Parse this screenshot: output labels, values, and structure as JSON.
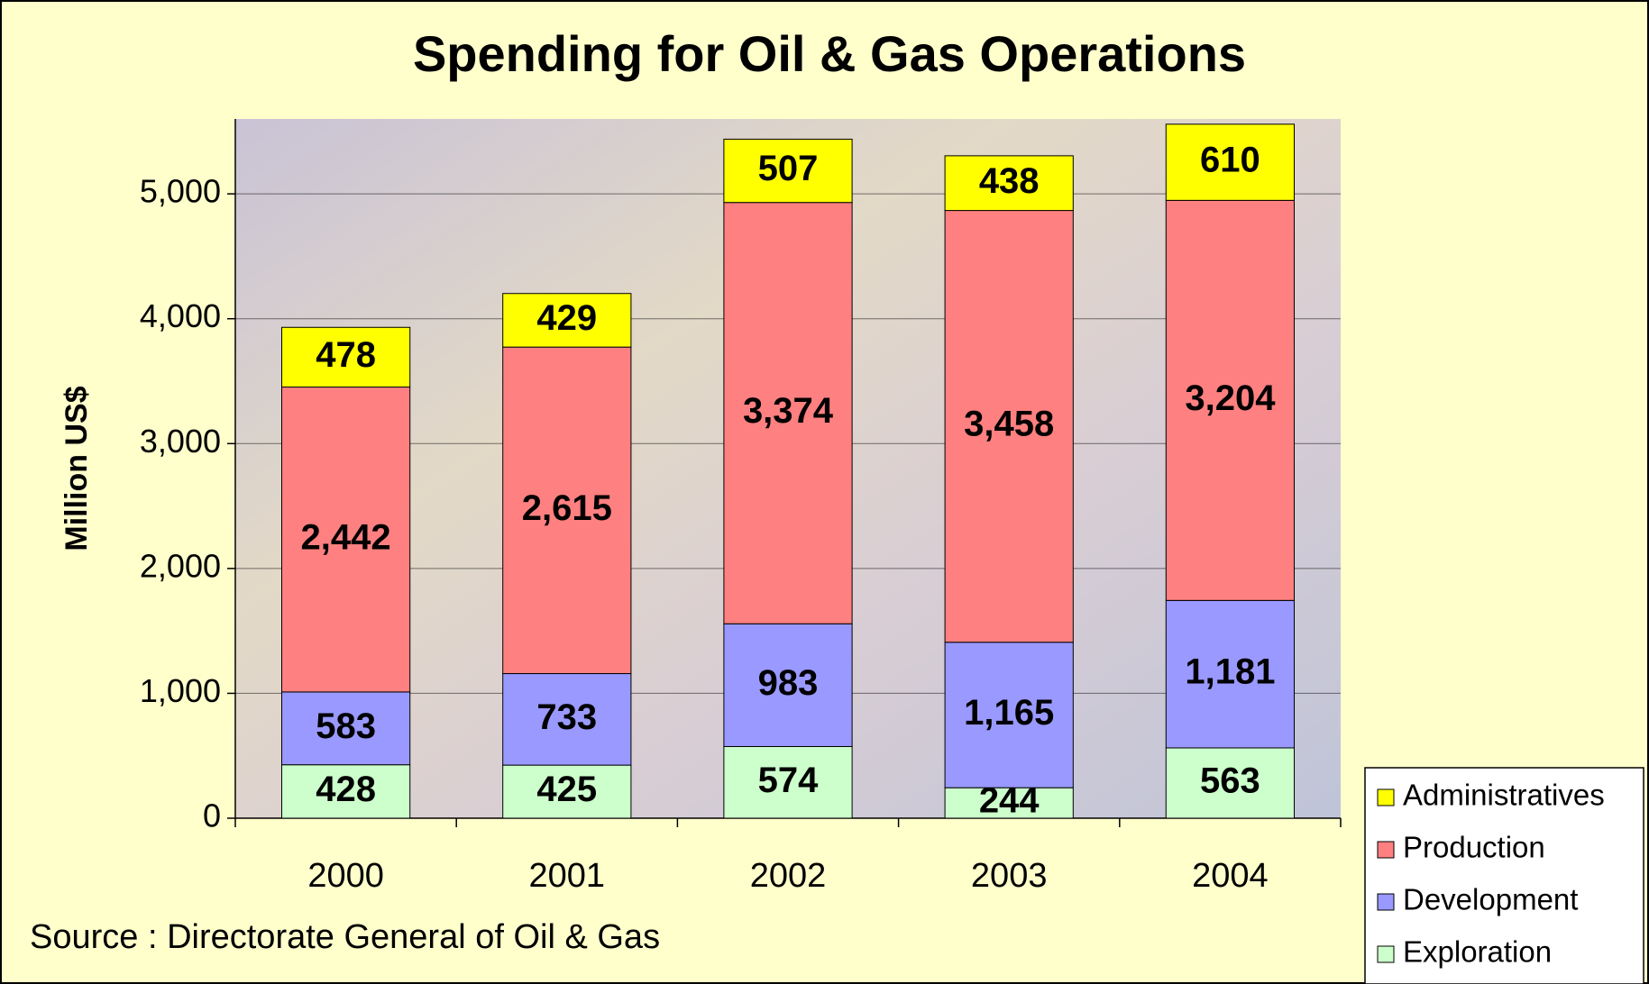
{
  "chart_data": {
    "type": "stacked-bar",
    "title": "Spending for Oil & Gas Operations",
    "y_label": "Million US$",
    "source": "Source : Directorate General of Oil & Gas",
    "categories": [
      "2000",
      "2001",
      "2002",
      "2003",
      "2004"
    ],
    "series": [
      {
        "name": "Exploration",
        "color": "#ccffcc",
        "values": [
          428,
          425,
          574,
          244,
          563
        ],
        "value_labels": [
          "428",
          "425",
          "574",
          "244",
          "563"
        ]
      },
      {
        "name": "Development",
        "color": "#9999ff",
        "values": [
          583,
          733,
          983,
          1165,
          1181
        ],
        "value_labels": [
          "583",
          "733",
          "983",
          "1,165",
          "1,181"
        ]
      },
      {
        "name": "Production",
        "color": "#ff8080",
        "values": [
          2442,
          2615,
          3374,
          3458,
          3204
        ],
        "value_labels": [
          "2,442",
          "2,615",
          "3,374",
          "3,458",
          "3,204"
        ]
      },
      {
        "name": "Administratives",
        "color": "#ffff00",
        "values": [
          478,
          429,
          507,
          438,
          610
        ],
        "value_labels": [
          "478",
          "429",
          "507",
          "438",
          "610"
        ]
      }
    ],
    "ylim": [
      0,
      5600
    ],
    "yticks": [
      0,
      {
        "value": 1000,
        "label": "1,000"
      },
      {
        "value": 2000,
        "label": "2,000"
      },
      {
        "value": 3000,
        "label": "3,000"
      },
      {
        "value": 4000,
        "label": "4,000"
      },
      {
        "value": 5000,
        "label": "5,000"
      }
    ],
    "grid": true,
    "legend": "bottom-right"
  }
}
